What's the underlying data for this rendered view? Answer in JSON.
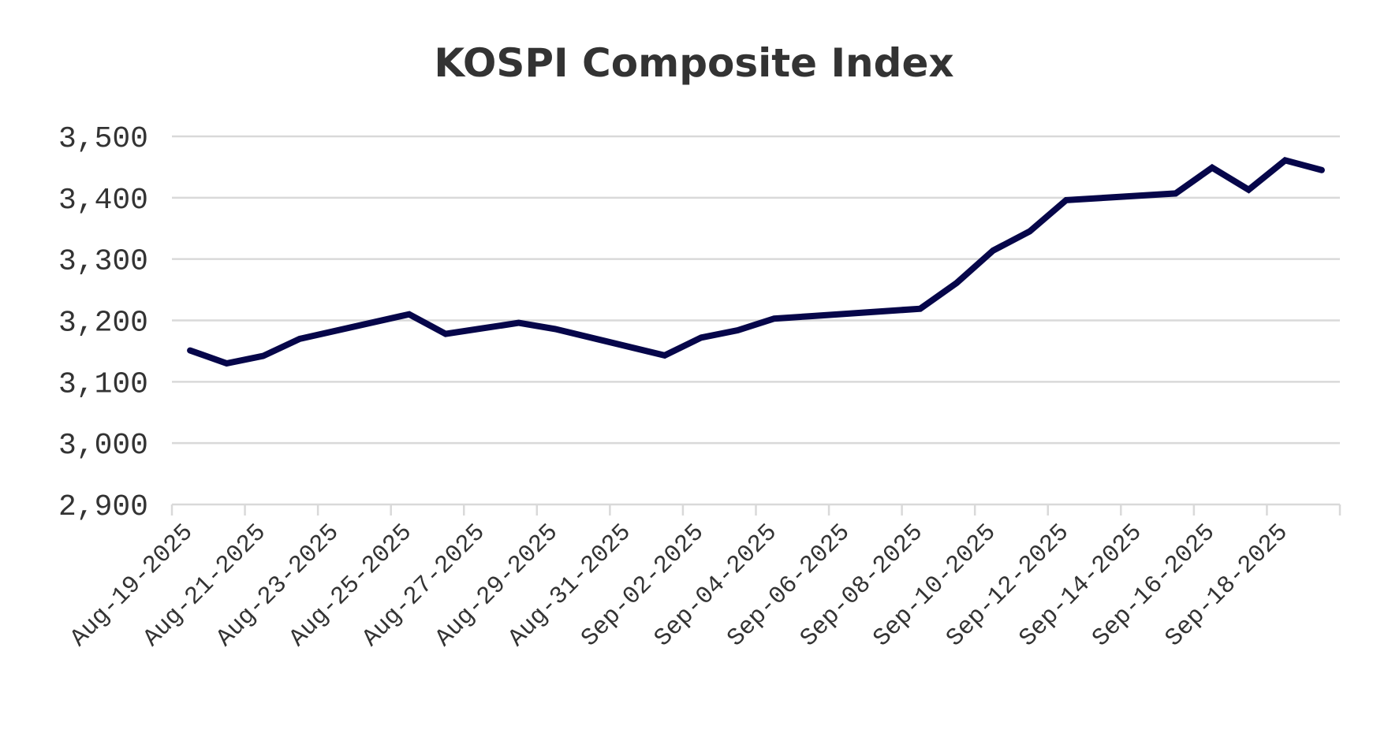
{
  "chart_data": {
    "type": "line",
    "title": "KOSPI Composite Index",
    "xlabel": "",
    "ylabel": "",
    "ylim": [
      2900,
      3500
    ],
    "yticks": [
      2900,
      3000,
      3100,
      3200,
      3300,
      3400,
      3500
    ],
    "ytick_labels": [
      "2,900",
      "3,000",
      "3,100",
      "3,200",
      "3,300",
      "3,400",
      "3,500"
    ],
    "xlim": [
      "2025-08-19",
      "2025-09-19"
    ],
    "xtick_labels": [
      "Aug-19-2025",
      "Aug-21-2025",
      "Aug-23-2025",
      "Aug-25-2025",
      "Aug-27-2025",
      "Aug-29-2025",
      "Aug-31-2025",
      "Sep-02-2025",
      "Sep-04-2025",
      "Sep-06-2025",
      "Sep-08-2025",
      "Sep-10-2025",
      "Sep-12-2025",
      "Sep-14-2025",
      "Sep-16-2025",
      "Sep-18-2025"
    ],
    "grid": true,
    "series": [
      {
        "name": "KOSPI",
        "color": "#06064a",
        "x": [
          "2025-08-19",
          "2025-08-20",
          "2025-08-21",
          "2025-08-22",
          "2025-08-25",
          "2025-08-26",
          "2025-08-27",
          "2025-08-28",
          "2025-08-29",
          "2025-09-01",
          "2025-09-02",
          "2025-09-03",
          "2025-09-04",
          "2025-09-05",
          "2025-09-08",
          "2025-09-09",
          "2025-09-10",
          "2025-09-11",
          "2025-09-12",
          "2025-09-15",
          "2025-09-16",
          "2025-09-17",
          "2025-09-18",
          "2025-09-19"
        ],
        "values": [
          3151,
          3130,
          3142,
          3170,
          3210,
          3178,
          3187,
          3196,
          3186,
          3143,
          3172,
          3184,
          3203,
          3207,
          3219,
          3261,
          3314,
          3345,
          3396,
          3407,
          3449,
          3413,
          3461,
          3445
        ]
      }
    ]
  }
}
